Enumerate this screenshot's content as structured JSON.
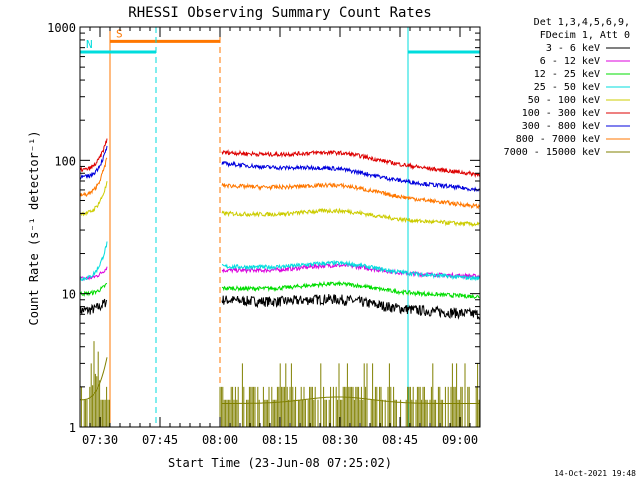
{
  "chart_data": {
    "type": "line",
    "title": "RHESSI Observing Summary Count Rates",
    "xlabel": "Start Time (23-Jun-08 07:25:02)",
    "ylabel": "Count Rate (s⁻¹ detector⁻¹)",
    "y_scale": "log",
    "ylim": [
      1,
      1000
    ],
    "xlim_minutes": [
      0,
      100
    ],
    "x_tick_labels": [
      "07:30",
      "07:45",
      "08:00",
      "08:15",
      "08:30",
      "08:45",
      "09:00"
    ],
    "x_tick_minutes": [
      5,
      20,
      35,
      50,
      65,
      80,
      95
    ],
    "y_tick_labels": [
      "1",
      "10",
      "100",
      "1000"
    ],
    "y_tick_values": [
      1,
      10,
      100,
      1000
    ],
    "legend_header": [
      "Det 1,3,4,5,6,9,",
      "FDecim 1, Att 0"
    ],
    "legend_position": "right",
    "data_gap_minutes": [
      7.5,
      35.0
    ],
    "series": [
      {
        "name": "3 - 6 keV",
        "color": "#000000",
        "pre": [
          7.5,
          9
        ],
        "post": [
          9,
          8,
          7
        ]
      },
      {
        "name": "6 - 12 keV",
        "color": "#dd00dd",
        "pre": [
          13,
          16
        ],
        "post": [
          15,
          14.5,
          13.5
        ]
      },
      {
        "name": "12 - 25 keV",
        "color": "#00dd00",
        "pre": [
          10,
          12
        ],
        "post": [
          11,
          10.5,
          9.5
        ]
      },
      {
        "name": "25 - 50 keV",
        "color": "#00dddd",
        "pre": [
          13,
          25
        ],
        "post": [
          16,
          15,
          13
        ]
      },
      {
        "name": "50 - 100 keV",
        "color": "#cccc00",
        "pre": [
          40,
          70
        ],
        "post": [
          40,
          37,
          33
        ]
      },
      {
        "name": "100 - 300 keV",
        "color": "#dd0000",
        "pre": [
          85,
          150
        ],
        "post": [
          115,
          100,
          78
        ]
      },
      {
        "name": "300 - 800 keV",
        "color": "#0000dd",
        "pre": [
          75,
          130
        ],
        "post": [
          95,
          75,
          60
        ]
      },
      {
        "name": "800 - 7000 keV",
        "color": "#ff7700",
        "pre": [
          55,
          110
        ],
        "post": [
          65,
          57,
          45
        ]
      },
      {
        "name": "7000 - 15000 keV",
        "color": "#808000",
        "pre": [
          1.6,
          3.5
        ],
        "post": [
          1.5,
          1.5,
          1.5
        ]
      }
    ],
    "annotations": [
      {
        "label": "S",
        "type": "SAA",
        "color": "#ff7700",
        "start_minute": 7.5,
        "end_minute": 35,
        "y_value": 780
      },
      {
        "label": "N",
        "type": "Night",
        "color": "#00dddd",
        "start_minute": 0,
        "end_minute": 19,
        "y_value": 650
      },
      {
        "label": "",
        "type": "Night",
        "color": "#00dddd",
        "start_minute": 82,
        "end_minute": 100,
        "y_value": 650
      }
    ],
    "timestamp": "14-Oct-2021 19:48"
  }
}
